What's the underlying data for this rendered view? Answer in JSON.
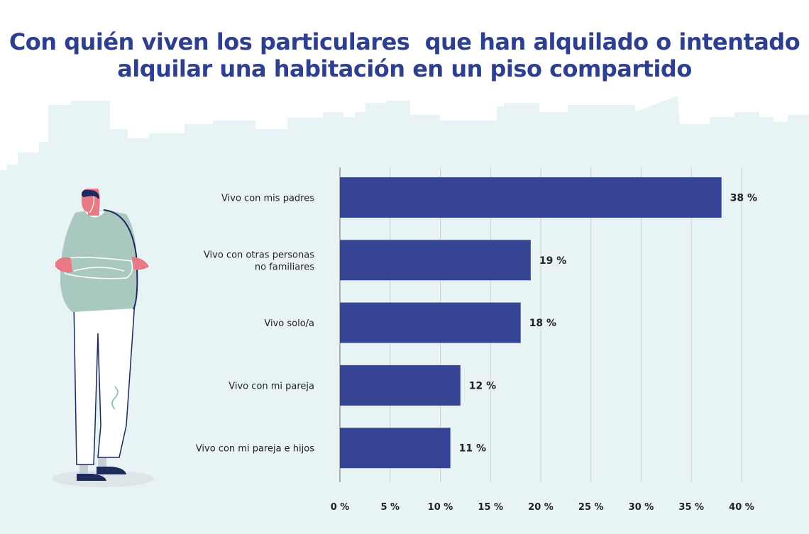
{
  "title_lines": [
    "Con quién viven los particulares  que han alquilado o intentado",
    "alquilar una habitación en un piso compartido"
  ],
  "colors": {
    "title": "#2e3f8f",
    "bar": "#354594",
    "grid": "#cfcfcf",
    "skyline": "#e7f3f5",
    "sweater": "#a9c9c0",
    "skin": "#e87a85",
    "hair": "#1e2a5a"
  },
  "chart_data": {
    "type": "bar",
    "orientation": "horizontal",
    "title": "Con quién viven los particulares  que han alquilado o intentado alquilar una habitación en un piso compartido",
    "categories": [
      [
        "Vivo con mis padres"
      ],
      [
        "Vivo con otras personas",
        "no familiares"
      ],
      [
        "Vivo solo/a"
      ],
      [
        "Vivo con mi pareja"
      ],
      [
        "Vivo con mi pareja e hijos"
      ]
    ],
    "values": [
      38,
      19,
      18,
      12,
      11
    ],
    "value_labels": [
      "38 %",
      "19 %",
      "18 %",
      "12 %",
      "11 %"
    ],
    "xlim": [
      0,
      40
    ],
    "xticks": [
      0,
      5,
      10,
      15,
      20,
      25,
      30,
      35,
      40
    ],
    "xtick_labels": [
      "0 %",
      "5 %",
      "10 %",
      "15 %",
      "20 %",
      "25 %",
      "30 %",
      "35 %",
      "40 %"
    ],
    "grid": true,
    "legend": "none"
  }
}
